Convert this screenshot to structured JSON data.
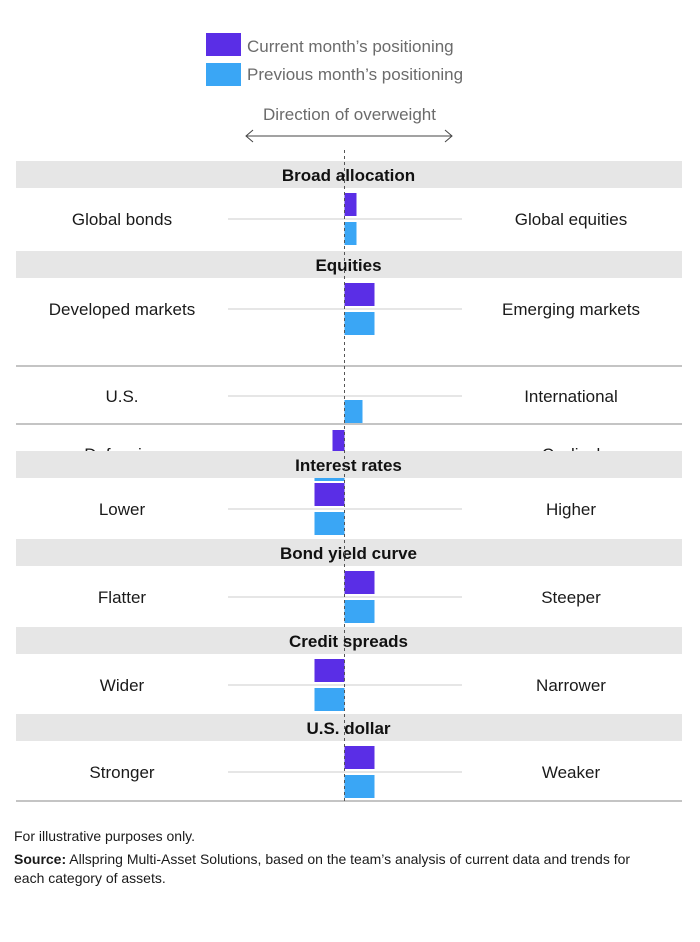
{
  "chart_data": {
    "type": "bar",
    "orientation": "horizontal-diverging",
    "legend": [
      {
        "name": "Current month’s positioning",
        "color": "#5a2ee6"
      },
      {
        "name": "Previous month’s positioning",
        "color": "#3aa6f5"
      }
    ],
    "direction_label": "Direction of overweight",
    "value_range": [
      -4,
      4
    ],
    "colors": {
      "section_band": "#e6e6e6",
      "grid": "#cccccc",
      "divider": "#8a8a8a",
      "center_line": "#555555"
    },
    "sections": [
      {
        "title": "Broad allocation",
        "rows": [
          {
            "left": "Global bonds",
            "right": "Global equities",
            "current": 0.4,
            "previous": 0.4
          }
        ]
      },
      {
        "title": "Equities",
        "rows": [
          {
            "left": "Developed markets",
            "right": "Emerging markets",
            "current": 1,
            "previous": 1
          },
          {
            "left": "U.S.",
            "right": "International",
            "current": 0,
            "previous": 0.6
          },
          {
            "left": "Defensive",
            "right": "Cyclical",
            "current": -0.4,
            "previous": -1
          }
        ]
      },
      {
        "title": "Interest rates",
        "rows": [
          {
            "left": "Lower",
            "right": "Higher",
            "current": -1,
            "previous": -1
          }
        ]
      },
      {
        "title": "Bond yield curve",
        "rows": [
          {
            "left": "Flatter",
            "right": "Steeper",
            "current": 1,
            "previous": 1
          }
        ]
      },
      {
        "title": "Credit spreads",
        "rows": [
          {
            "left": "Wider",
            "right": "Narrower",
            "current": -1,
            "previous": -1
          }
        ]
      },
      {
        "title": "U.S. dollar",
        "rows": [
          {
            "left": "Stronger",
            "right": "Weaker",
            "current": 1,
            "previous": 1
          }
        ]
      }
    ]
  },
  "footnote": {
    "disclaimer": "For illustrative purposes only.",
    "source_label": "Source:",
    "source_text": " Allspring Multi-Asset Solutions, based on the team’s analysis of current data and trends for each category of assets."
  }
}
